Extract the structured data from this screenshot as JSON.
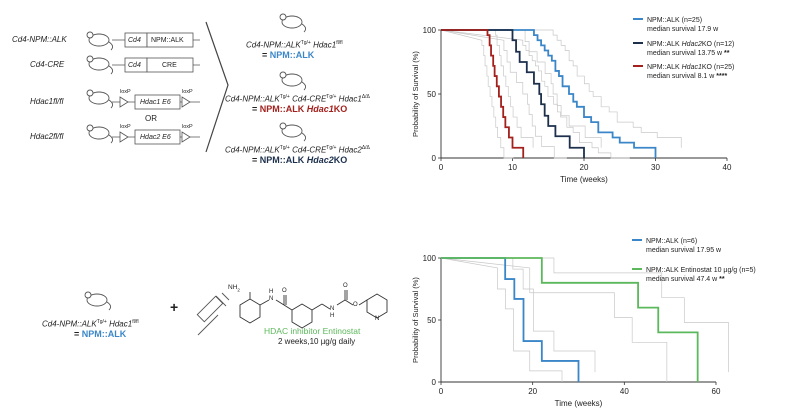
{
  "schematic": {
    "rows": [
      {
        "label": "Cd4-NPM::ALK",
        "box1": "Cd4",
        "box2": "NPM::ALK"
      },
      {
        "label": "Cd4-CRE",
        "box1": "Cd4",
        "box2": "CRE"
      },
      {
        "label": "Hdac1fl/fl",
        "loxp_left": "loxP",
        "loxp_right": "loxP",
        "box": "Hdac1 E6"
      },
      {
        "label": "Hdac2fl/fl",
        "loxp_left": "loxP",
        "loxp_right": "loxP",
        "box": "Hdac2 E6"
      }
    ],
    "or_label": "OR",
    "results": [
      {
        "line1_a": "Cd4-NPM::ALK",
        "line1_sup": "Tg/+",
        "line1_b": " Hdac1",
        "line1_sup2": "fl/fl",
        "name": "NPM::ALK",
        "color": "#3a86c8"
      },
      {
        "line1_a": "Cd4-NPM::ALK",
        "line1_sup": "Tg/+",
        "line1_b": " Cd4-CRE",
        "line1_sup2": "Tg/+",
        "line1_c": " Hdac1",
        "line1_sup3": "Δ/Δ",
        "name": "NPM::ALK Hdac1KO",
        "name_plain": "NPM::ALK ",
        "name_it": "Hdac1",
        "name_end": "KO",
        "color": "#a3201c"
      },
      {
        "line1_a": "Cd4-NPM::ALK",
        "line1_sup": "Tg/+",
        "line1_b": " Cd4-CRE",
        "line1_sup2": "Tg/+",
        "line1_c": " Hdac2",
        "line1_sup3": "Δ/Δ",
        "name": "NPM::ALK Hdac2KO",
        "name_plain": "NPM::ALK ",
        "name_it": "Hdac2",
        "name_end": "KO",
        "color": "#1c2f4c"
      }
    ],
    "equals": "= "
  },
  "treatment": {
    "mouse_line_a": "Cd4-NPM::ALK",
    "mouse_sup": "Tg/+",
    "mouse_line_b": " Hdac1",
    "mouse_sup2": "fl/fl",
    "mouse_name": "NPM::ALK",
    "plus": "+",
    "drug_name": "HDAC inhibitor Entinostat",
    "dose": "2 weeks,10 µg/g daily",
    "nh2": "NH",
    "nh2_sub": "2",
    "atom_H": "H",
    "atom_N": "N",
    "atom_O": "O"
  },
  "colors": {
    "blue": "#3a86c8",
    "red": "#a3201c",
    "navy": "#1c2f4c",
    "green": "#5cb85c",
    "grey": "#b8b8b8"
  },
  "chart_data": [
    {
      "type": "line",
      "subtype": "kaplan-meier",
      "title": "",
      "xlabel": "Time (weeks)",
      "ylabel": "Probability of Survival (%)",
      "xlim": [
        0,
        40
      ],
      "ylim": [
        0,
        100
      ],
      "xticks": [
        0,
        10,
        20,
        30,
        40
      ],
      "yticks": [
        0,
        50,
        100
      ],
      "legend": "top-right",
      "series": [
        {
          "name": "NPM::ALK (n=25)",
          "note": "median survival 17.9 w",
          "color": "#3a86c8",
          "points": [
            [
              0,
              100
            ],
            [
              13.0,
              100
            ],
            [
              13.0,
              96
            ],
            [
              13.5,
              96
            ],
            [
              13.5,
              92
            ],
            [
              14.0,
              92
            ],
            [
              14.0,
              88
            ],
            [
              14.5,
              88
            ],
            [
              14.5,
              84
            ],
            [
              15.0,
              84
            ],
            [
              15.0,
              80
            ],
            [
              15.5,
              80
            ],
            [
              15.5,
              76
            ],
            [
              16.0,
              76
            ],
            [
              16.0,
              68
            ],
            [
              16.5,
              68
            ],
            [
              16.5,
              64
            ],
            [
              17.0,
              64
            ],
            [
              17.0,
              56
            ],
            [
              17.9,
              56
            ],
            [
              17.9,
              50
            ],
            [
              18.5,
              50
            ],
            [
              18.5,
              44
            ],
            [
              19.0,
              44
            ],
            [
              19.0,
              40
            ],
            [
              20.0,
              40
            ],
            [
              20.0,
              32
            ],
            [
              21.0,
              32
            ],
            [
              21.0,
              28
            ],
            [
              22.0,
              28
            ],
            [
              22.0,
              20
            ],
            [
              24.0,
              20
            ],
            [
              24.0,
              16
            ],
            [
              25.0,
              16
            ],
            [
              25.0,
              12
            ],
            [
              27.0,
              12
            ],
            [
              27.0,
              8
            ],
            [
              30.0,
              8
            ],
            [
              30.0,
              0
            ]
          ]
        },
        {
          "name_plain": "NPM::ALK ",
          "name_it": "Hdac2",
          "name_end": "KO (n=12)",
          "note_plain": "median survival 13.75 w ",
          "note_stars": "**",
          "color": "#1c2f4c",
          "points": [
            [
              0,
              100
            ],
            [
              10.0,
              100
            ],
            [
              10.0,
              92
            ],
            [
              10.5,
              92
            ],
            [
              10.5,
              83
            ],
            [
              11.0,
              83
            ],
            [
              11.0,
              75
            ],
            [
              12.0,
              75
            ],
            [
              12.0,
              67
            ],
            [
              13.0,
              67
            ],
            [
              13.0,
              58
            ],
            [
              13.75,
              58
            ],
            [
              13.75,
              50
            ],
            [
              14.0,
              50
            ],
            [
              14.0,
              42
            ],
            [
              14.5,
              42
            ],
            [
              14.5,
              33
            ],
            [
              15.0,
              33
            ],
            [
              15.0,
              25
            ],
            [
              16.0,
              25
            ],
            [
              16.0,
              17
            ],
            [
              18.0,
              17
            ],
            [
              18.0,
              8
            ],
            [
              20.0,
              8
            ],
            [
              20.0,
              0
            ]
          ]
        },
        {
          "name_plain": "NPM::ALK ",
          "name_it": "Hdac1",
          "name_end": "KO (n=25)",
          "note_plain": "median survival 8.1 w ",
          "note_stars": "****",
          "color": "#a3201c",
          "points": [
            [
              0,
              100
            ],
            [
              6.5,
              100
            ],
            [
              6.5,
              96
            ],
            [
              6.8,
              96
            ],
            [
              6.8,
              88
            ],
            [
              7.0,
              88
            ],
            [
              7.0,
              80
            ],
            [
              7.3,
              80
            ],
            [
              7.3,
              72
            ],
            [
              7.5,
              72
            ],
            [
              7.5,
              64
            ],
            [
              7.8,
              64
            ],
            [
              7.8,
              56
            ],
            [
              8.1,
              56
            ],
            [
              8.1,
              48
            ],
            [
              8.4,
              48
            ],
            [
              8.4,
              40
            ],
            [
              8.7,
              40
            ],
            [
              8.7,
              32
            ],
            [
              9.0,
              32
            ],
            [
              9.0,
              24
            ],
            [
              9.5,
              24
            ],
            [
              9.5,
              16
            ],
            [
              10.0,
              16
            ],
            [
              10.0,
              8
            ],
            [
              11.5,
              8
            ],
            [
              11.5,
              0
            ]
          ]
        }
      ]
    },
    {
      "type": "line",
      "subtype": "kaplan-meier",
      "title": "",
      "xlabel": "Time (weeks)",
      "ylabel": "Probability of Survival (%)",
      "xlim": [
        0,
        60
      ],
      "ylim": [
        0,
        100
      ],
      "xticks": [
        0,
        20,
        40,
        60
      ],
      "yticks": [
        0,
        50,
        100
      ],
      "legend": "top-right",
      "series": [
        {
          "name": "NPM::ALK (n=6)",
          "note": "median survival 17.95 w",
          "color": "#3a86c8",
          "points": [
            [
              0,
              100
            ],
            [
              14.0,
              100
            ],
            [
              14.0,
              83
            ],
            [
              16.0,
              83
            ],
            [
              16.0,
              67
            ],
            [
              18.0,
              67
            ],
            [
              18.0,
              33
            ],
            [
              22.0,
              33
            ],
            [
              22.0,
              17
            ],
            [
              30.0,
              17
            ],
            [
              30.0,
              0
            ]
          ]
        },
        {
          "name": "NPM::ALK Entinostat 10 µg/g (n=5)",
          "note_plain": "median survival 47.4 w ",
          "note_stars": "**",
          "color": "#5cb85c",
          "points": [
            [
              0,
              100
            ],
            [
              22.0,
              100
            ],
            [
              22.0,
              80
            ],
            [
              43.0,
              80
            ],
            [
              43.0,
              60
            ],
            [
              47.4,
              60
            ],
            [
              47.4,
              40
            ],
            [
              56.0,
              40
            ],
            [
              56.0,
              0
            ]
          ]
        }
      ]
    }
  ]
}
